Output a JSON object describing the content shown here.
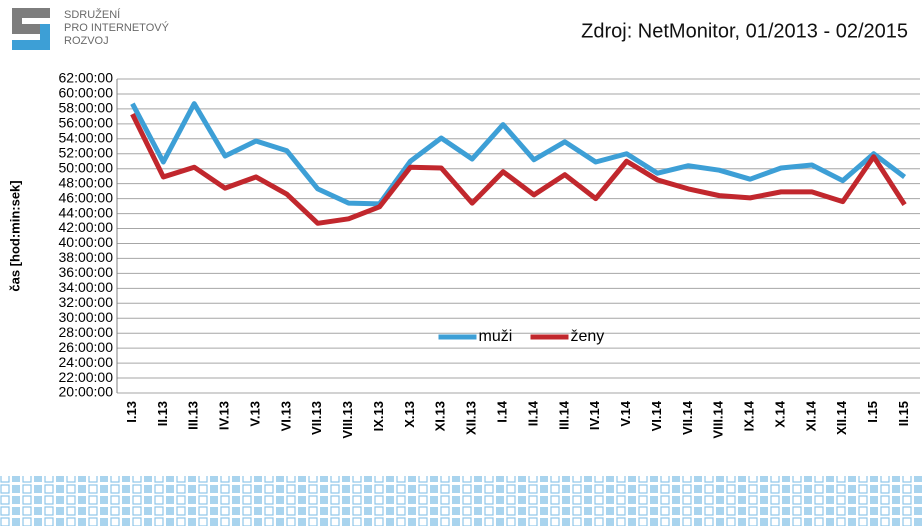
{
  "logo": [
    "SDRUŽENÍ",
    "PRO INTERNETOVÝ",
    "ROZVOJ"
  ],
  "chart_data": {
    "type": "line",
    "title": "Zdroj: NetMonitor, 01/2013 - 02/2015",
    "y_label": "čas [hod:min:sek]",
    "categories": [
      "I.13",
      "II.13",
      "III.13",
      "IV.13",
      "V.13",
      "VI.13",
      "VII.13",
      "VIII.13",
      "IX.13",
      "X.13",
      "XI.13",
      "XII.13",
      "I.14",
      "II.14",
      "III.14",
      "IV.14",
      "V.14",
      "VI.14",
      "VII.14",
      "VIII.14",
      "IX.14",
      "X.14",
      "XI.14",
      "XII.14",
      "I.15",
      "II.15"
    ],
    "series": [
      {
        "name": "muži",
        "color": "#3d9fd6",
        "values": [
          58.7,
          50.9,
          58.7,
          51.7,
          53.7,
          52.4,
          47.3,
          45.4,
          45.3,
          51.0,
          54.1,
          51.3,
          55.9,
          51.2,
          53.6,
          50.9,
          52.0,
          49.4,
          50.4,
          49.8,
          48.6,
          50.1,
          50.5,
          48.4,
          52.0,
          48.9
        ]
      },
      {
        "name": "ženy",
        "color": "#c1272d",
        "values": [
          57.3,
          48.9,
          50.2,
          47.4,
          48.9,
          46.6,
          42.7,
          43.3,
          44.9,
          50.2,
          50.1,
          45.4,
          49.6,
          46.5,
          49.2,
          46.0,
          51.0,
          48.5,
          47.3,
          46.4,
          46.1,
          46.9,
          46.9,
          45.6,
          51.6,
          45.2
        ]
      }
    ],
    "ylim": [
      20,
      62
    ],
    "yticks": [
      {
        "value": 20,
        "label": "20:00:00"
      },
      {
        "value": 22,
        "label": "22:00:00"
      },
      {
        "value": 24,
        "label": "24:00:00"
      },
      {
        "value": 26,
        "label": "26:00:00"
      },
      {
        "value": 28,
        "label": "28:00:00"
      },
      {
        "value": 30,
        "label": "30:00:00"
      },
      {
        "value": 32,
        "label": "32:00:00"
      },
      {
        "value": 34,
        "label": "34:00:00"
      },
      {
        "value": 36,
        "label": "36:00:00"
      },
      {
        "value": 38,
        "label": "38:00:00"
      },
      {
        "value": 40,
        "label": "40:00:00"
      },
      {
        "value": 42,
        "label": "42:00:00"
      },
      {
        "value": 44,
        "label": "44:00:00"
      },
      {
        "value": 46,
        "label": "46:00:00"
      },
      {
        "value": 48,
        "label": "48:00:00"
      },
      {
        "value": 50,
        "label": "50:00:00"
      },
      {
        "value": 52,
        "label": "52:00:00"
      },
      {
        "value": 54,
        "label": "54:00:00"
      },
      {
        "value": 56,
        "label": "56:00:00"
      },
      {
        "value": 58,
        "label": "58:00:00"
      },
      {
        "value": 60,
        "label": "60:00:00"
      },
      {
        "value": 62,
        "label": "62:00:00"
      }
    ],
    "grid": true,
    "legend": "center"
  }
}
